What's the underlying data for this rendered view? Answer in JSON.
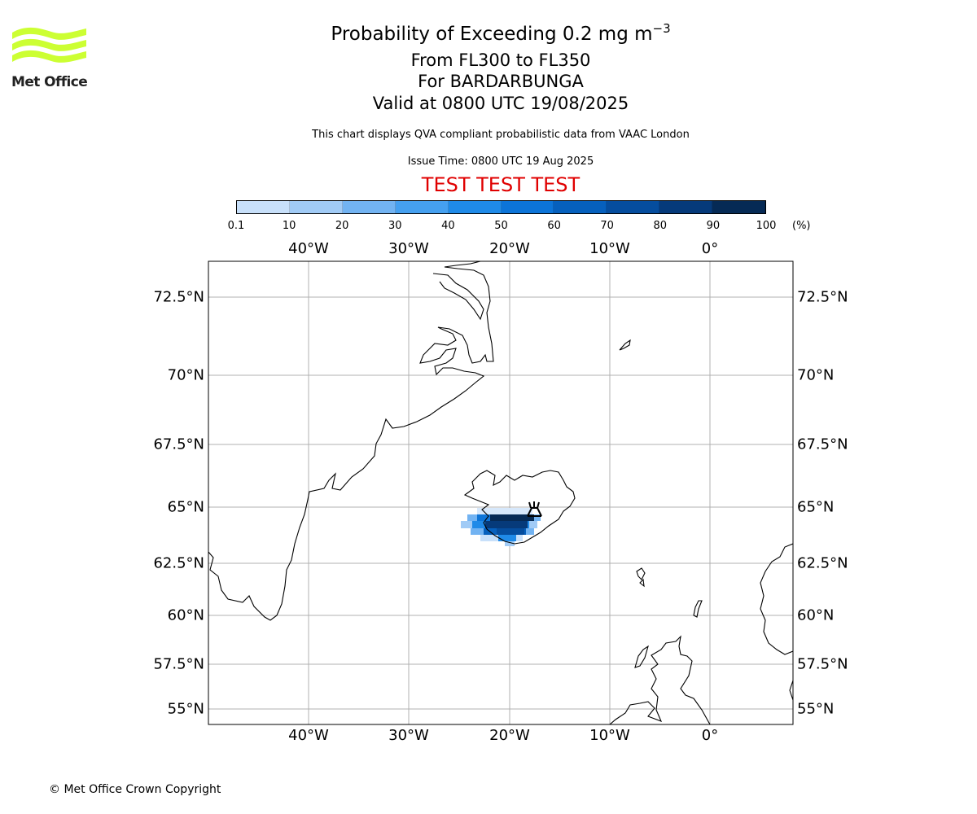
{
  "header": {
    "title_prefix": "Probability of Exceeding 0.2 mg m",
    "title_exponent": "−3",
    "levels": "From FL300 to FL350",
    "volcano": "For BARDARBUNGA",
    "valid": "Valid at 0800 UTC 19/08/2025",
    "subtitle": "This chart displays QVA compliant probabilistic data from VAAC London",
    "issue_time": "Issue Time: 0800 UTC 19 Aug 2025",
    "test_banner": "TEST TEST TEST"
  },
  "logo": {
    "text": "Met Office",
    "color": "#ccff33"
  },
  "colorbar": {
    "labels": [
      "0.1",
      "10",
      "20",
      "30",
      "40",
      "50",
      "60",
      "70",
      "80",
      "90",
      "100"
    ],
    "unit": "(%)",
    "colors": [
      "#f0f6ff",
      "#c8e0fa",
      "#a1cbf6",
      "#72b3f2",
      "#45a0f0",
      "#1f8ae8",
      "#0c74d8",
      "#0660bd",
      "#054d9e",
      "#063a7a",
      "#062a55"
    ]
  },
  "map": {
    "lon_labels": [
      "40°W",
      "30°W",
      "20°W",
      "10°W",
      "0°"
    ],
    "lat_labels": [
      "72.5°N",
      "70°N",
      "67.5°N",
      "65°N",
      "62.5°N",
      "60°N",
      "57.5°N",
      "55°N"
    ],
    "volcano_marker": "volcano-icon",
    "grid": true
  },
  "footer": {
    "copyright": "© Met Office Crown Copyright"
  }
}
